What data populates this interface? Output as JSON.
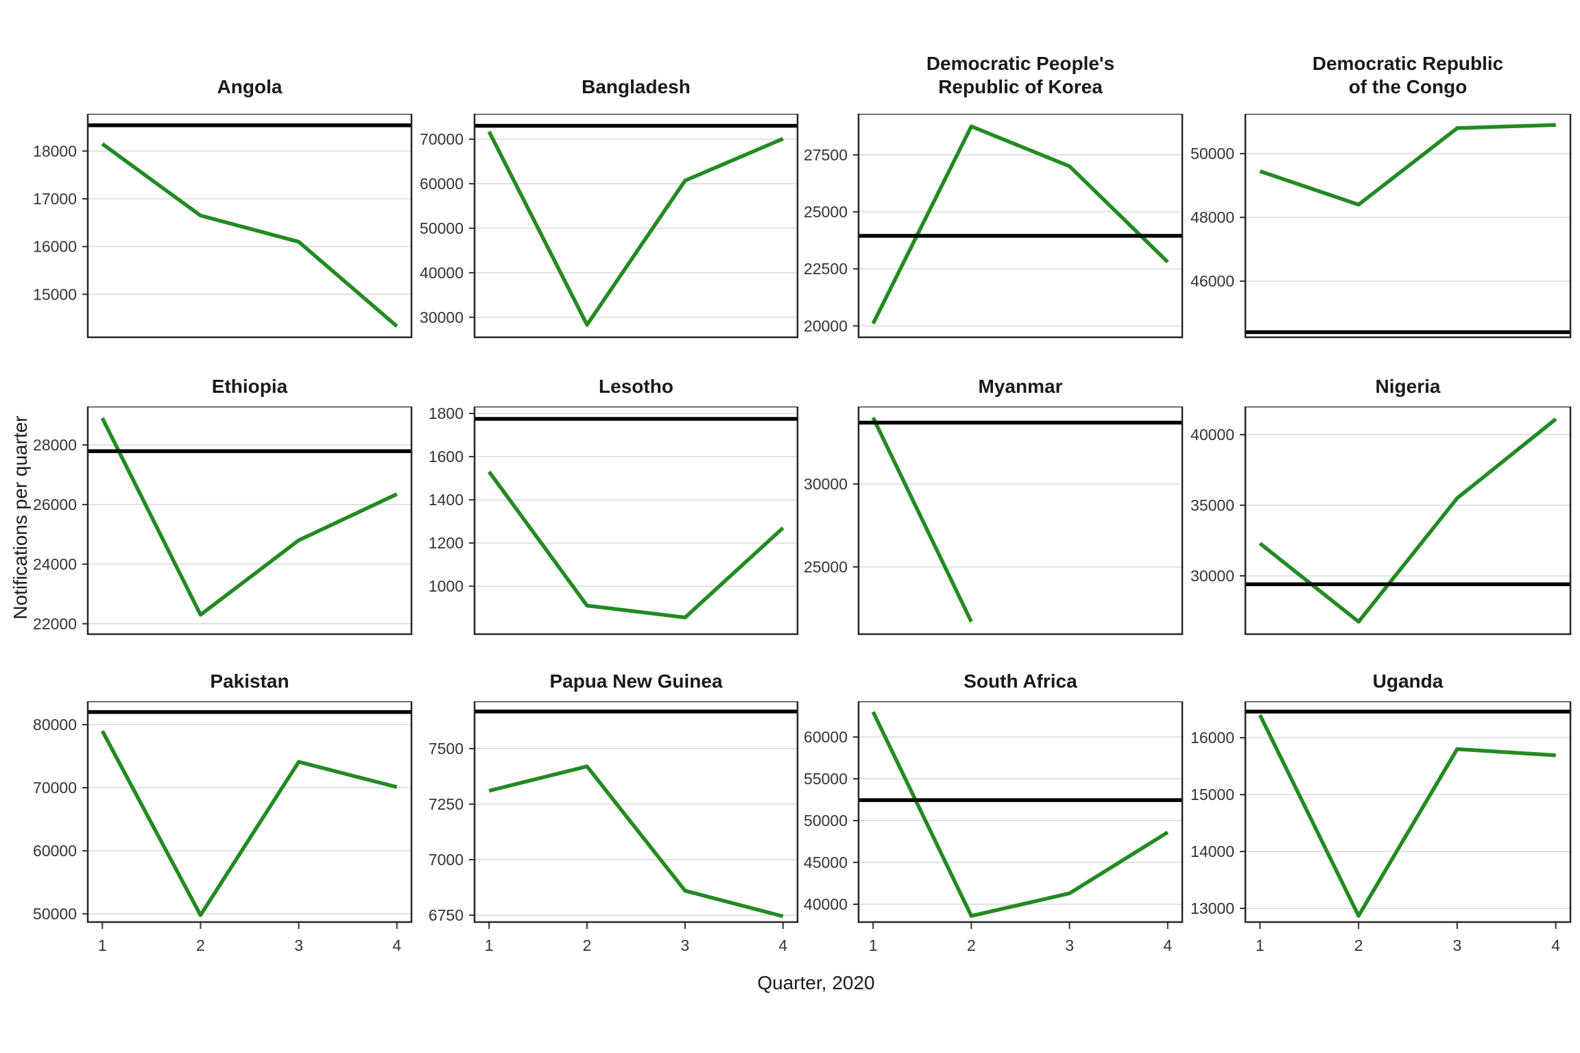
{
  "figure": {
    "x_axis_title": "Quarter, 2020",
    "y_axis_title": "Notifications per quarter",
    "x_tick_labels": [
      "1",
      "2",
      "3",
      "4"
    ]
  },
  "style": {
    "line_color": "#228B22",
    "reference_line_color": "#000000",
    "grid_color": "#d9d9d9",
    "panel_border_color": "#262626",
    "tick_text_color": "#333333",
    "title_text_color": "#1a1a1a"
  },
  "chart_data": {
    "type": "line",
    "x": [
      1,
      2,
      3,
      4
    ],
    "xlabel": "Quarter, 2020",
    "ylabel": "Notifications per quarter",
    "layout": {
      "rows": 3,
      "cols": 4,
      "gridlines": "horizontal-only",
      "legend": "none",
      "note": "each panel has a thick black horizontal reference line and a green quarterly data line"
    },
    "panels": [
      {
        "title": "Angola",
        "values": [
          18150,
          16650,
          16100,
          14330
        ],
        "reference": 18540,
        "yticks": [
          15000,
          16000,
          17000,
          18000
        ],
        "ylim": [
          14100,
          18780
        ]
      },
      {
        "title": "Bangladesh",
        "values": [
          71700,
          28300,
          60700,
          70100
        ],
        "reference": 73000,
        "yticks": [
          30000,
          40000,
          50000,
          60000,
          70000
        ],
        "ylim": [
          25500,
          75700
        ]
      },
      {
        "title": "Democratic People's\nRepublic of Korea",
        "values": [
          20100,
          28750,
          27000,
          22800
        ],
        "reference": 23950,
        "yticks": [
          20000,
          22500,
          25000,
          27500
        ],
        "ylim": [
          19500,
          29300
        ]
      },
      {
        "title": "Democratic Republic\nof the Congo",
        "values": [
          49450,
          48400,
          50800,
          50900
        ],
        "reference": 44400,
        "yticks": [
          46000,
          48000,
          50000
        ],
        "ylim": [
          44240,
          51250
        ]
      },
      {
        "title": "Ethiopia",
        "values": [
          28900,
          22300,
          24800,
          26350
        ],
        "reference": 27790,
        "yticks": [
          22000,
          24000,
          26000,
          28000
        ],
        "ylim": [
          21650,
          29290
        ]
      },
      {
        "title": "Lesotho",
        "values": [
          1530,
          910,
          855,
          1270
        ],
        "reference": 1775,
        "yticks": [
          1000,
          1200,
          1400,
          1600,
          1800
        ],
        "ylim": [
          778,
          1832
        ]
      },
      {
        "title": "Myanmar",
        "values": [
          34000,
          21700,
          null,
          null
        ],
        "reference": 33700,
        "yticks": [
          25000,
          30000
        ],
        "ylim": [
          20950,
          34670
        ]
      },
      {
        "title": "Nigeria",
        "values": [
          32300,
          26750,
          35500,
          41100
        ],
        "reference": 29400,
        "yticks": [
          30000,
          35000,
          40000
        ],
        "ylim": [
          25870,
          41990
        ]
      },
      {
        "title": "Pakistan",
        "values": [
          79000,
          49800,
          74100,
          70100
        ],
        "reference": 82000,
        "yticks": [
          50000,
          60000,
          70000,
          80000
        ],
        "ylim": [
          48700,
          83700
        ]
      },
      {
        "title": "Papua New Guinea",
        "values": [
          7310,
          7420,
          6860,
          6745
        ],
        "reference": 7667,
        "yticks": [
          6750,
          7000,
          7250,
          7500
        ],
        "ylim": [
          6719,
          7713
        ]
      },
      {
        "title": "South Africa",
        "values": [
          63000,
          38600,
          41300,
          48600
        ],
        "reference": 52450,
        "yticks": [
          40000,
          45000,
          50000,
          55000,
          60000
        ],
        "ylim": [
          37870,
          64260
        ]
      },
      {
        "title": "Uganda",
        "values": [
          16400,
          12870,
          15800,
          15690
        ],
        "reference": 16460,
        "yticks": [
          13000,
          14000,
          15000,
          16000
        ],
        "ylim": [
          12760,
          16640
        ]
      }
    ]
  }
}
